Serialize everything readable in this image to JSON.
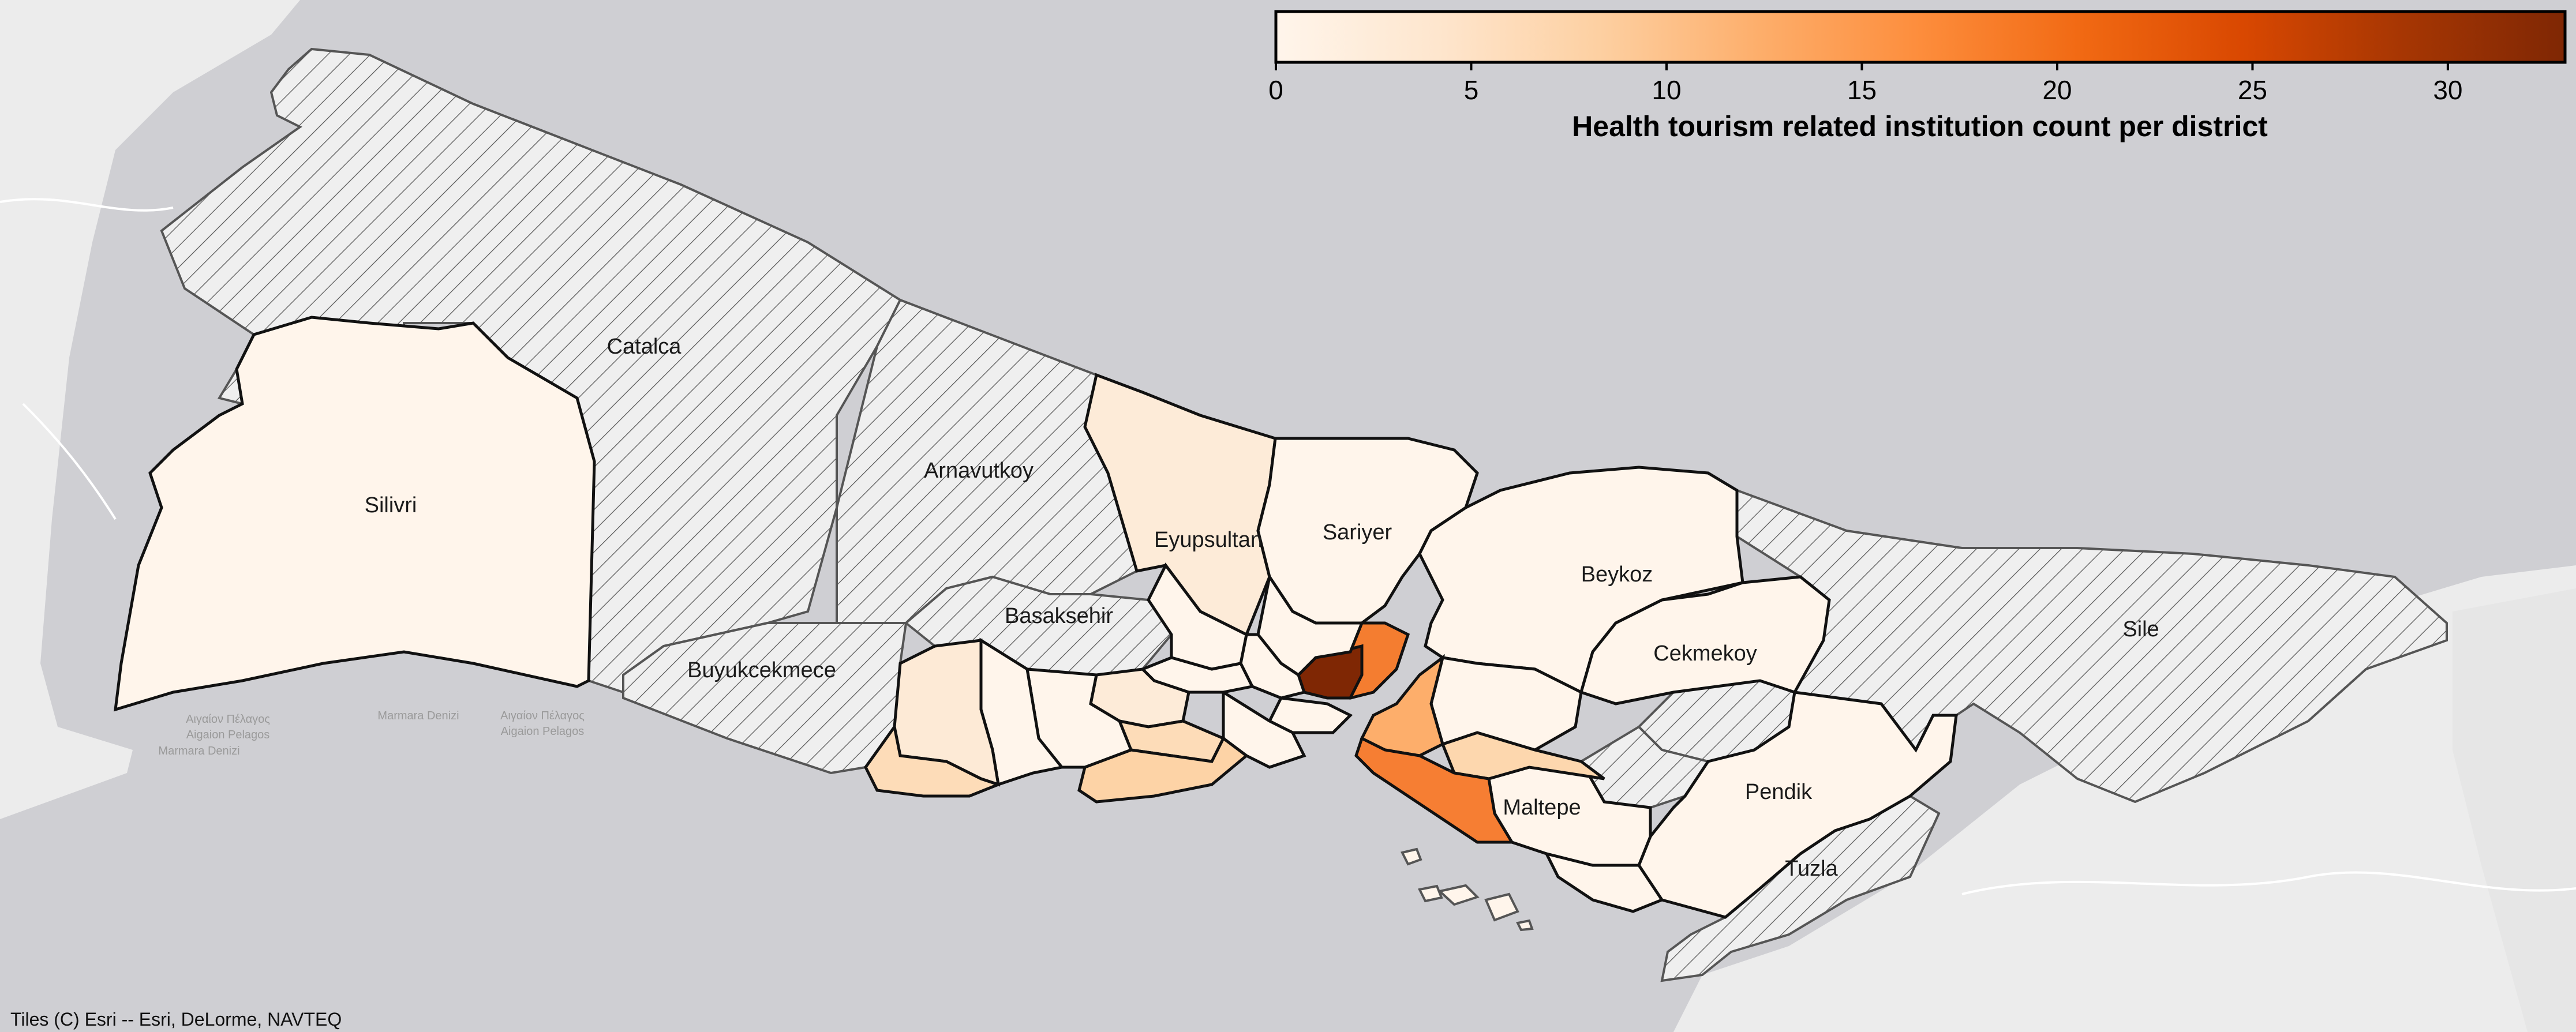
{
  "colorbar": {
    "title": "Health tourism related institution count per district",
    "ticks": [
      0,
      5,
      10,
      15,
      20,
      25,
      30
    ],
    "min": 0,
    "max": 33,
    "colormap": [
      "#fff5eb",
      "#fee6ce",
      "#fdd0a2",
      "#fdae6b",
      "#fd8d3c",
      "#f16913",
      "#d94801",
      "#a63603",
      "#7f2704"
    ]
  },
  "district_labels": {
    "silivri": "Silivri",
    "catalca": "Catalca",
    "arnavutkoy": "Arnavutkoy",
    "eyupsultan": "Eyupsultan",
    "sariyer": "Sariyer",
    "basaksehir": "Basaksehir",
    "buyukcekmece": "Buyukcekmece",
    "beykoz": "Beykoz",
    "cekmekoy": "Cekmekoy",
    "sile": "Sile",
    "pendik": "Pendik",
    "maltepe": "Maltepe",
    "tuzla": "Tuzla"
  },
  "basemap_labels": {
    "sea1a": "Αιγαίον Πέλαγος",
    "sea1b": "Aigaion Pelagos",
    "sea1c": "Marmara Denizi",
    "sea2": "Marmara Denizi",
    "sea3a": "Αιγαίον Πέλαγος",
    "sea3b": "Aigaion Pelagos"
  },
  "attribution": "Tiles (C) Esri -- Esri, DeLorme, NAVTEQ",
  "colors": {
    "sea": "#cfcfd3",
    "land_basemap": "#ececec",
    "no_data_fill": "#efefef",
    "hatch": "#555555",
    "border": "#111111"
  }
}
